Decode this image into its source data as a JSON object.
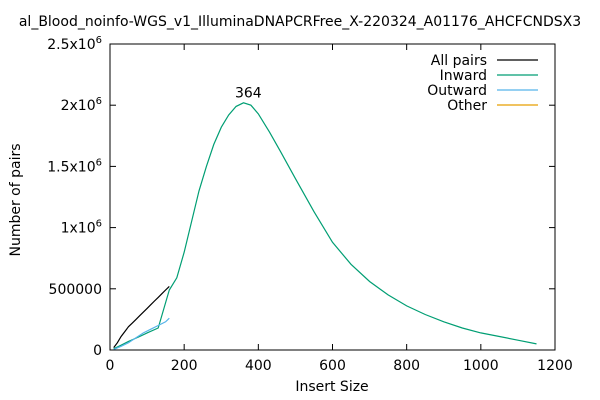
{
  "chart_data": {
    "type": "line",
    "title": "al_Blood_noinfo-WGS_v1_IlluminaDNAPCRFree_X-220324_A01176_AHCFCNDSX3",
    "xlabel": "Insert Size",
    "ylabel": "Number of pairs",
    "xlim": [
      0,
      1200
    ],
    "ylim": [
      0,
      2500000
    ],
    "xticks": [
      0,
      200,
      400,
      600,
      800,
      1000,
      1200
    ],
    "xtick_labels": [
      "0",
      "200",
      "400",
      "600",
      "800",
      "1000",
      "1200"
    ],
    "yticks": [
      {
        "value": 0,
        "base": "0",
        "exp": ""
      },
      {
        "value": 500000,
        "base": "500000",
        "exp": ""
      },
      {
        "value": 1000000,
        "base": "1x10",
        "exp": "6"
      },
      {
        "value": 1500000,
        "base": "1.5x10",
        "exp": "6"
      },
      {
        "value": 2000000,
        "base": "2x10",
        "exp": "6"
      },
      {
        "value": 2500000,
        "base": "2.5x10",
        "exp": "6"
      }
    ],
    "legend_position": "top-right",
    "annotation": {
      "text": "364",
      "x": 364,
      "y": 2080000
    },
    "series": [
      {
        "name": "All pairs",
        "color": "#000000",
        "x": [
          10,
          20,
          30,
          40,
          50,
          60,
          70,
          80,
          90,
          100,
          110,
          120,
          130,
          140,
          150,
          160
        ],
        "y": [
          20000,
          60000,
          110000,
          150000,
          190000,
          220000,
          250000,
          280000,
          310000,
          340000,
          370000,
          400000,
          430000,
          460000,
          490000,
          520000
        ]
      },
      {
        "name": "Inward",
        "color": "#009e73",
        "x": [
          10,
          30,
          50,
          80,
          100,
          130,
          160,
          180,
          200,
          220,
          240,
          260,
          280,
          300,
          320,
          340,
          360,
          380,
          400,
          430,
          460,
          500,
          550,
          600,
          650,
          700,
          750,
          800,
          850,
          900,
          950,
          1000,
          1050,
          1100,
          1150
        ],
        "y": [
          10000,
          40000,
          70000,
          110000,
          140000,
          180000,
          490000,
          590000,
          800000,
          1050000,
          1300000,
          1500000,
          1680000,
          1820000,
          1920000,
          1990000,
          2020000,
          2000000,
          1930000,
          1780000,
          1620000,
          1400000,
          1130000,
          880000,
          700000,
          560000,
          450000,
          360000,
          290000,
          230000,
          180000,
          140000,
          110000,
          80000,
          50000
        ]
      },
      {
        "name": "Outward",
        "color": "#56b4e9",
        "x": [
          10,
          30,
          50,
          70,
          90,
          110,
          130,
          150,
          160
        ],
        "y": [
          5000,
          30000,
          60000,
          100000,
          140000,
          170000,
          200000,
          230000,
          260000
        ]
      },
      {
        "name": "Other",
        "color": "#e69f00",
        "x": [
          0,
          1200
        ],
        "y": [
          0,
          0
        ]
      }
    ]
  }
}
